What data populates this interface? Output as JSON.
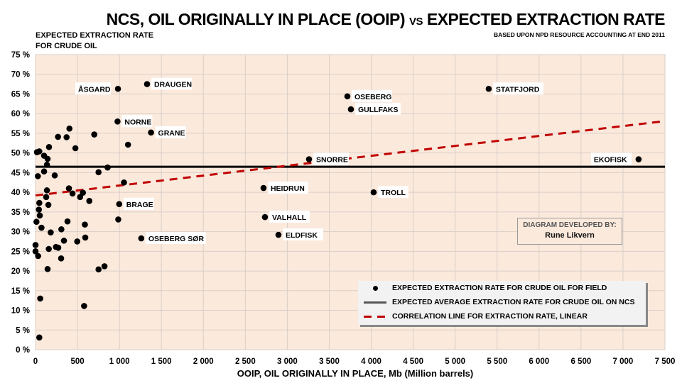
{
  "chart_data": {
    "type": "scatter",
    "title": "NCS, OIL ORIGINALLY IN PLACE (OOIP)",
    "title_vs": "VS",
    "title_rest": "EXPECTED EXTRACTION RATE",
    "subtitle": "BASED UPON NPD RESOURCE ACCOUNTING AT END 2011",
    "ylabel_line1": "EXPECTED EXTRACTION RATE",
    "ylabel_line2": "FOR CRUDE OIL",
    "xlabel": "OOIP, OIL ORIGINALLY IN PLACE, Mb (Million barrels)",
    "xlim": [
      0,
      7500
    ],
    "ylim": [
      0,
      75
    ],
    "x_ticks": [
      "0",
      "500",
      "1 000",
      "1 500",
      "2 000",
      "2 500",
      "3 000",
      "3 500",
      "4 000",
      "4 500",
      "5 000",
      "5 500",
      "6 000",
      "6 500",
      "7 000",
      "7 500"
    ],
    "y_ticks": [
      "0 %",
      "5 %",
      "10 %",
      "15 %",
      "20 %",
      "25 %",
      "30 %",
      "35 %",
      "40 %",
      "45 %",
      "50 %",
      "55 %",
      "60 %",
      "65 %",
      "70 %",
      "75 %"
    ],
    "grid": true,
    "average_rate": 46.5,
    "trend": {
      "x": [
        0,
        7500
      ],
      "y": [
        39.2,
        58.1
      ]
    },
    "named_points": [
      {
        "name": "ÅSGARD",
        "x": 982,
        "y": 66.3
      },
      {
        "name": "DRAUGEN",
        "x": 1329,
        "y": 67.5
      },
      {
        "name": "NORNE",
        "x": 977,
        "y": 58.0
      },
      {
        "name": "GRANE",
        "x": 1376,
        "y": 55.2
      },
      {
        "name": "BRAGE",
        "x": 997,
        "y": 37.0
      },
      {
        "name": "OSEBERG SØR",
        "x": 1260,
        "y": 28.3
      },
      {
        "name": "OSEBERG",
        "x": 3716,
        "y": 64.4
      },
      {
        "name": "GULLFAKS",
        "x": 3758,
        "y": 61.1
      },
      {
        "name": "STATFJORD",
        "x": 5400,
        "y": 66.3
      },
      {
        "name": "SNORRE",
        "x": 3259,
        "y": 48.4
      },
      {
        "name": "EKOFISK",
        "x": 7186,
        "y": 48.4
      },
      {
        "name": "HEIDRUN",
        "x": 2717,
        "y": 41.1
      },
      {
        "name": "TROLL",
        "x": 4029,
        "y": 40.0
      },
      {
        "name": "VALHALL",
        "x": 2734,
        "y": 33.7
      },
      {
        "name": "ELDFISK",
        "x": 2895,
        "y": 29.2
      }
    ],
    "points": [
      [
        404,
        56.2
      ],
      [
        268,
        54.1
      ],
      [
        370,
        54.0
      ],
      [
        700,
        54.7
      ],
      [
        161,
        51.5
      ],
      [
        475,
        51.2
      ],
      [
        1102,
        52.1
      ],
      [
        17,
        50.2
      ],
      [
        45,
        50.4
      ],
      [
        102,
        49.3
      ],
      [
        144,
        48.5
      ],
      [
        136,
        47.0
      ],
      [
        102,
        45.3
      ],
      [
        28,
        44.1
      ],
      [
        229,
        44.3
      ],
      [
        751,
        45.1
      ],
      [
        859,
        46.3
      ],
      [
        1054,
        42.5
      ],
      [
        136,
        40.5
      ],
      [
        398,
        41.0
      ],
      [
        441,
        39.7
      ],
      [
        531,
        38.8
      ],
      [
        565,
        39.9
      ],
      [
        641,
        37.8
      ],
      [
        127,
        38.8
      ],
      [
        153,
        36.8
      ],
      [
        45,
        37.3
      ],
      [
        40,
        35.6
      ],
      [
        51,
        34.1
      ],
      [
        11,
        32.5
      ],
      [
        71,
        31.0
      ],
      [
        181,
        29.8
      ],
      [
        381,
        32.6
      ],
      [
        308,
        30.6
      ],
      [
        588,
        31.8
      ],
      [
        339,
        27.7
      ],
      [
        497,
        27.5
      ],
      [
        593,
        28.5
      ],
      [
        986,
        33.1
      ],
      [
        0,
        26.6
      ],
      [
        0,
        25.0
      ],
      [
        31,
        23.8
      ],
      [
        158,
        25.6
      ],
      [
        243,
        26.1
      ],
      [
        271,
        25.9
      ],
      [
        305,
        23.2
      ],
      [
        144,
        20.5
      ],
      [
        751,
        20.4
      ],
      [
        822,
        21.2
      ],
      [
        56,
        13.0
      ],
      [
        579,
        11.1
      ],
      [
        45,
        3.1
      ]
    ],
    "legend": {
      "placement": "bottom-right",
      "entries": [
        "EXPECTED EXTRACTION RATE FOR CRUDE OIL FOR FIELD",
        "EXPECTED AVERAGE EXTRACTION RATE FOR CRUDE OIL ON NCS",
        "CORRELATION LINE FOR EXTRACTION RATE, LINEAR"
      ]
    },
    "credit_line1": "DIAGRAM DEVELOPED BY:",
    "credit_line2": "Rune Likvern",
    "colors": {
      "plot_bg": "#fbe9dc",
      "grid": "#d9cfc8",
      "average": "#000000",
      "trend": "#c00000",
      "points": "#000000"
    }
  }
}
